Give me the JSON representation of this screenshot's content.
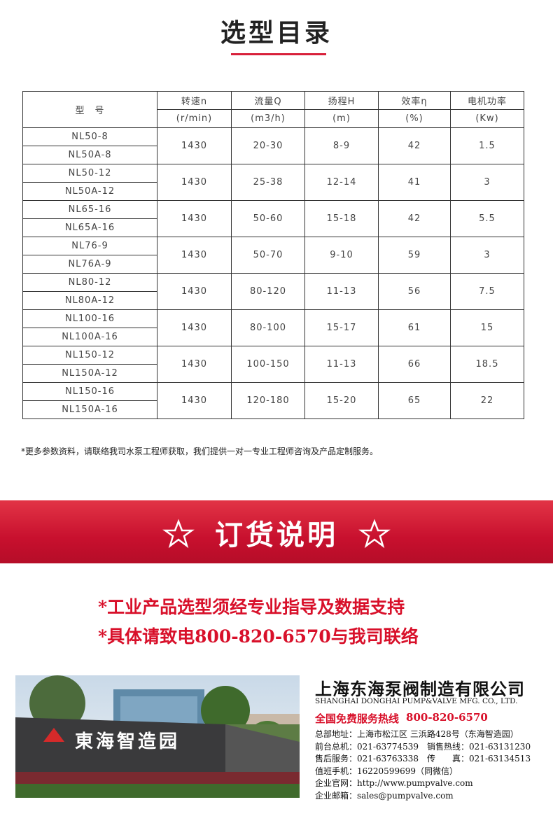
{
  "title": "选型目录",
  "table": {
    "header": [
      "型　号",
      "转速n",
      "流量Q",
      "扬程H",
      "效率η",
      "电机功率"
    ],
    "units": [
      "(r/min)",
      "(m3/h)",
      "(m)",
      "(%)",
      "(Kw)"
    ],
    "groups": [
      {
        "models": [
          "NL50-8",
          "NL50A-8"
        ],
        "values": [
          "1430",
          "20-30",
          "8-9",
          "42",
          "1.5"
        ]
      },
      {
        "models": [
          "NL50-12",
          "NL50A-12"
        ],
        "values": [
          "1430",
          "25-38",
          "12-14",
          "41",
          "3"
        ]
      },
      {
        "models": [
          "NL65-16",
          "NL65A-16"
        ],
        "values": [
          "1430",
          "50-60",
          "15-18",
          "42",
          "5.5"
        ]
      },
      {
        "models": [
          "NL76-9",
          "NL76A-9"
        ],
        "values": [
          "1430",
          "50-70",
          "9-10",
          "59",
          "3"
        ]
      },
      {
        "models": [
          "NL80-12",
          "NL80A-12"
        ],
        "values": [
          "1430",
          "80-120",
          "11-13",
          "56",
          "7.5"
        ]
      },
      {
        "models": [
          "NL100-16",
          "NL100A-16"
        ],
        "values": [
          "1430",
          "80-100",
          "15-17",
          "61",
          "15"
        ]
      },
      {
        "models": [
          "NL150-12",
          "NL150A-12"
        ],
        "values": [
          "1430",
          "100-150",
          "11-13",
          "66",
          "18.5"
        ]
      },
      {
        "models": [
          "NL150-16",
          "NL150A-16"
        ],
        "values": [
          "1430",
          "120-180",
          "15-20",
          "65",
          "22"
        ]
      }
    ]
  },
  "note": "*更多参数资料，请联络我司水泵工程师获取，我们提供一对一专业工程师咨询及产品定制服务。",
  "order": {
    "title": "订货说明",
    "lines": [
      "*工业产品选型须经专业指导及数据支持",
      "*具体请致电800-820-6570与我司联络"
    ]
  },
  "company": {
    "sign": "東海智造园",
    "name": "上海东海泵阀制造有限公司",
    "name_en": "SHANGHAI DONGHAI PUMP&VALVE MFG. CO., LTD.",
    "hotline_label": "全国免费服务热线",
    "hotline": "800-820-6570",
    "contacts": [
      "总部地址：上海市松江区 三浜路428号（东海智造园）",
      "前台总机：021-63774539　销售热线：021-63131230",
      "售后服务：021-63763338　传　　真：021-63134513",
      "值班手机：16220599699（同微信）",
      "企业官网：http://www.pumpvalve.com",
      "企业邮箱：sales@pumpvalve.com"
    ]
  }
}
